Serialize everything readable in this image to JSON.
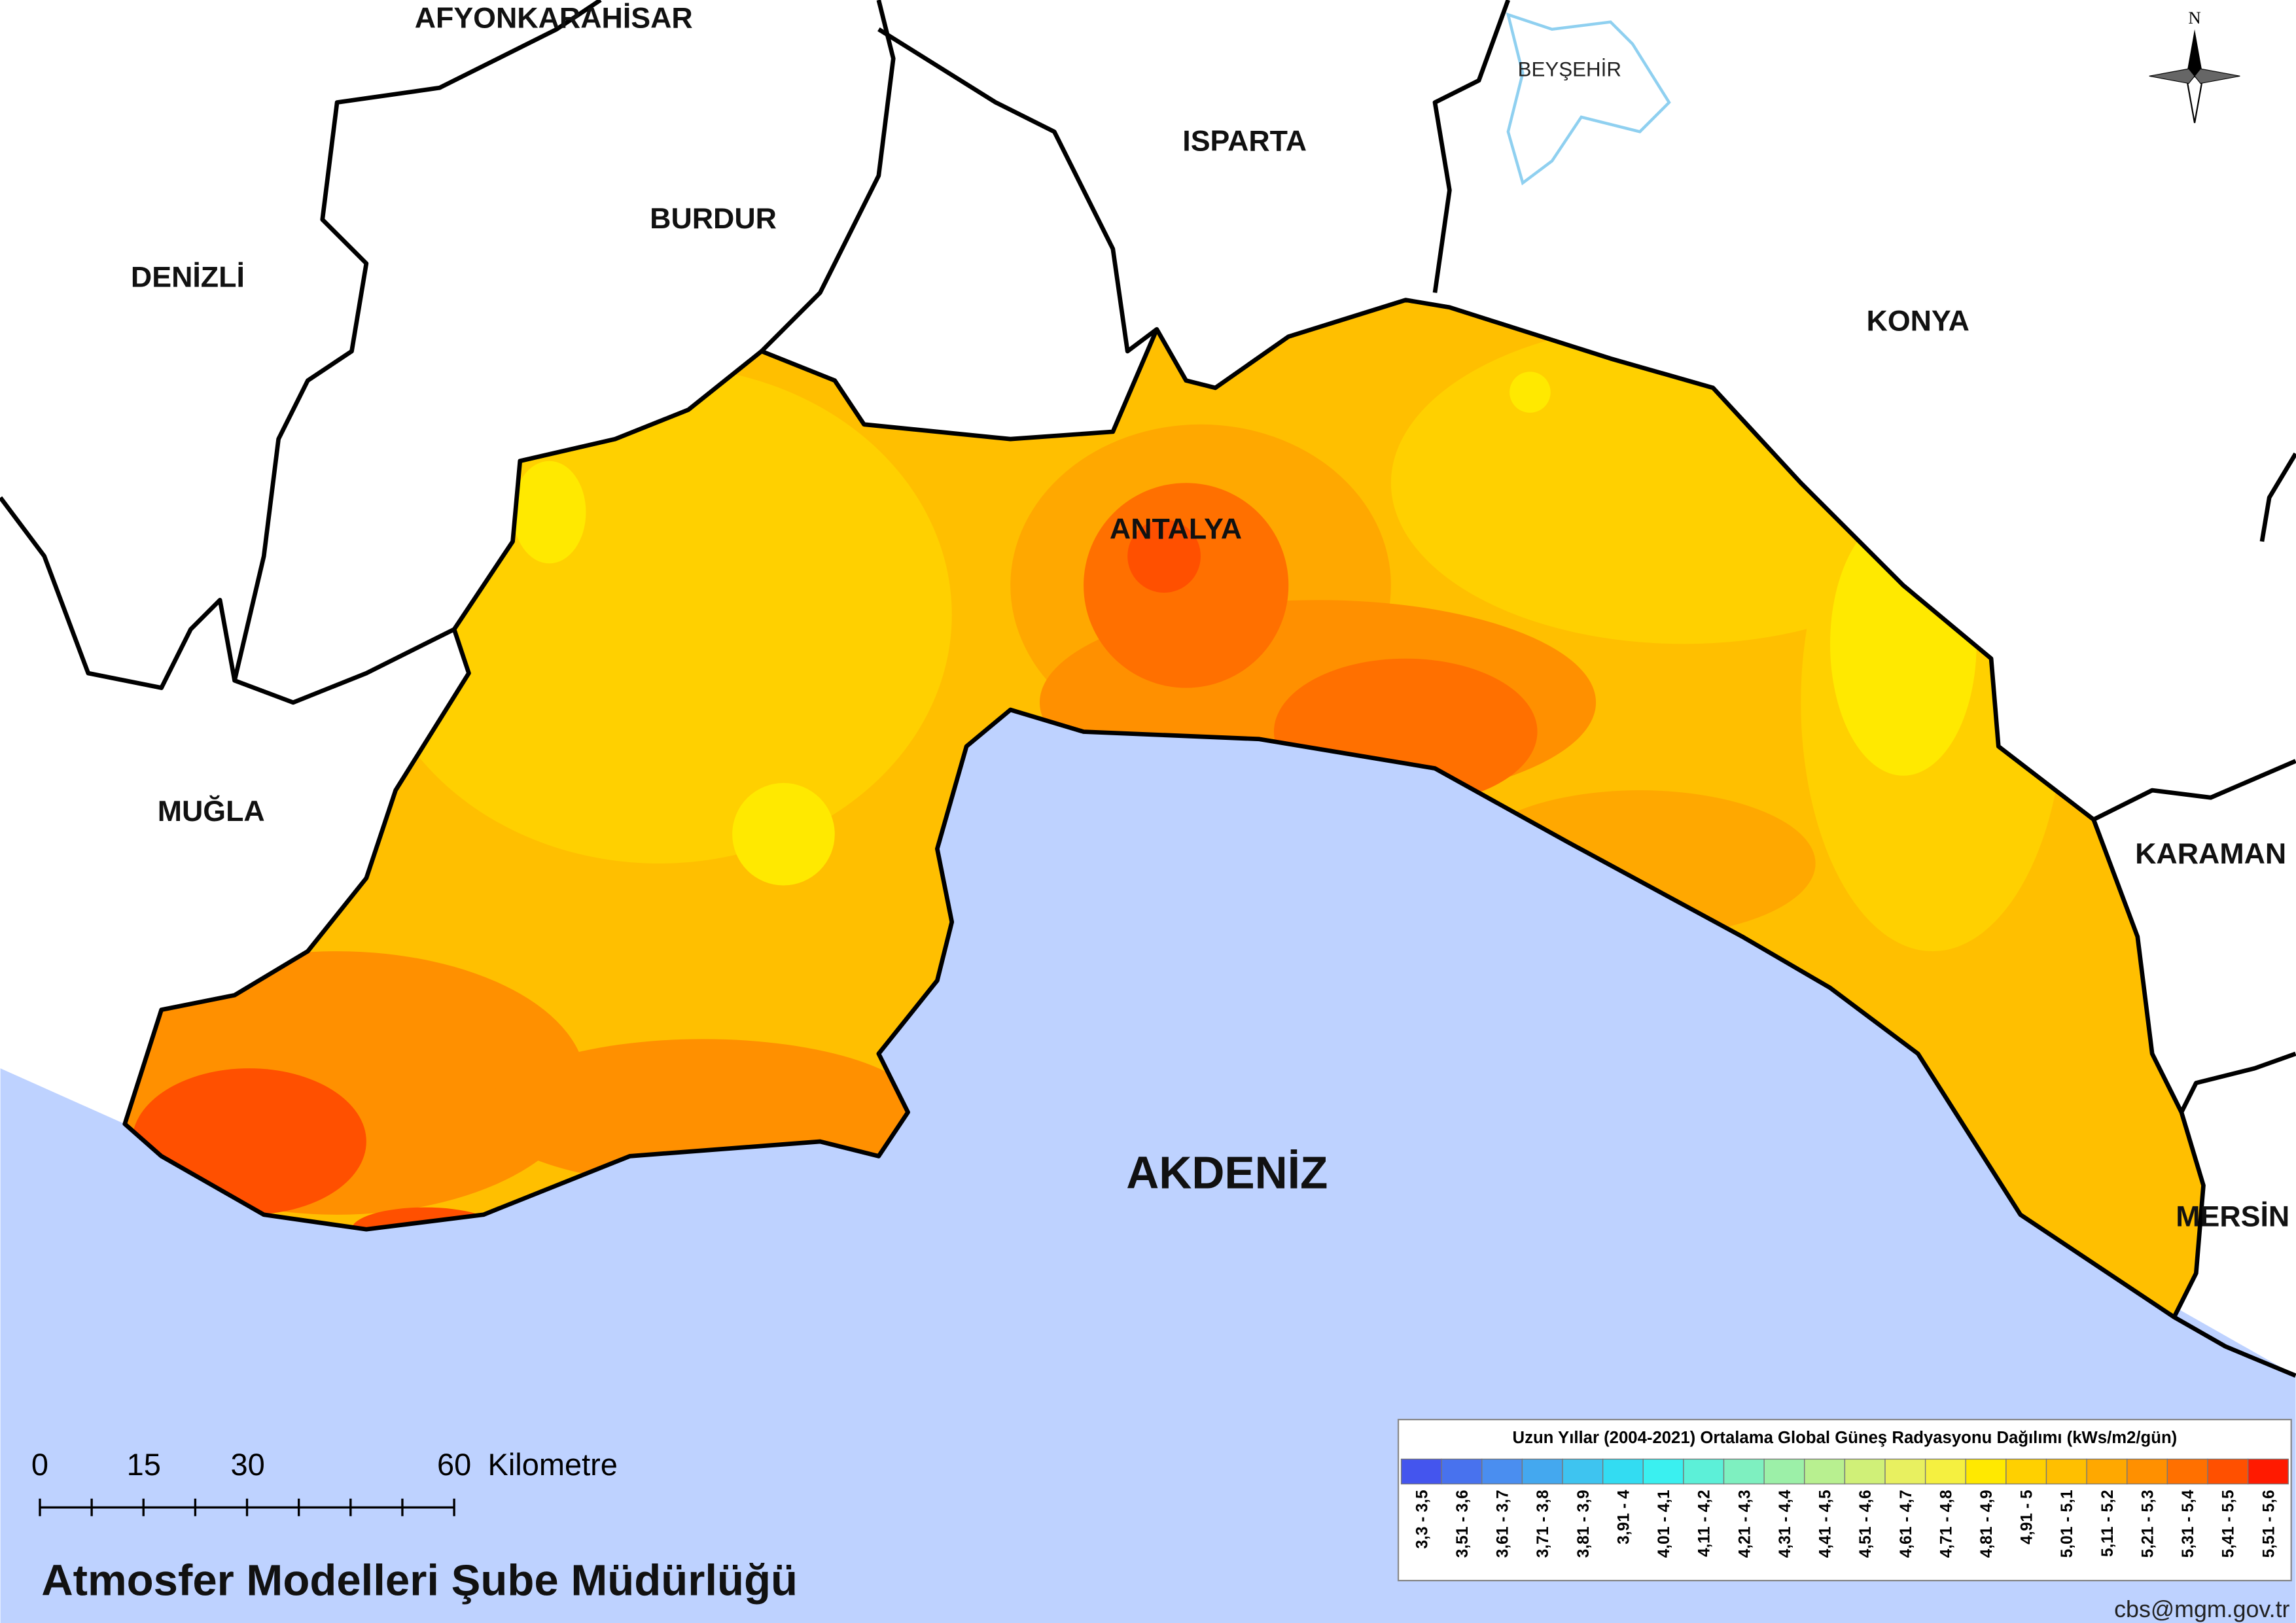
{
  "map": {
    "provinces": [
      "AFYONKARAHİSAR",
      "BURDUR",
      "ISPARTA",
      "DENİZLİ",
      "KONYA",
      "ANTALYA",
      "MUĞLA",
      "KARAMAN",
      "MERSİN"
    ],
    "lake": "BEYŞEHİR",
    "sea": "AKDENİZ",
    "north": "N"
  },
  "scale_bar": {
    "labels": [
      "0",
      "15",
      "30",
      "60"
    ],
    "unit": "Kilometre"
  },
  "legend": {
    "title": "Uzun Yıllar (2004-2021) Ortalama Global Güneş Radyasyonu Dağılımı (kWs/m2/gün)",
    "classes": [
      {
        "label": "3,3 - 3,5",
        "color": "#4455ee"
      },
      {
        "label": "3,51 - 3,6",
        "color": "#4872ee"
      },
      {
        "label": "3,61 - 3,7",
        "color": "#4a8ef0"
      },
      {
        "label": "3,71 - 3,8",
        "color": "#44a8ef"
      },
      {
        "label": "3,81 - 3,9",
        "color": "#3ec4f0"
      },
      {
        "label": "3,91 - 4",
        "color": "#33dcf2"
      },
      {
        "label": "4,01 - 4,1",
        "color": "#3af0f0"
      },
      {
        "label": "4,11 - 4,2",
        "color": "#5cf0d8"
      },
      {
        "label": "4,21 - 4,3",
        "color": "#7ef0c0"
      },
      {
        "label": "4,31 - 4,4",
        "color": "#9cf0a8"
      },
      {
        "label": "4,41 - 4,5",
        "color": "#b8f090"
      },
      {
        "label": "4,51 - 4,6",
        "color": "#d0f078"
      },
      {
        "label": "4,61 - 4,7",
        "color": "#e8f060"
      },
      {
        "label": "4,71 - 4,8",
        "color": "#f5f040"
      },
      {
        "label": "4,81 - 4,9",
        "color": "#ffe900"
      },
      {
        "label": "4,91 - 5",
        "color": "#ffd000"
      },
      {
        "label": "5,01 - 5,1",
        "color": "#ffbf00"
      },
      {
        "label": "5,11 - 5,2",
        "color": "#ffa800"
      },
      {
        "label": "5,21 - 5,3",
        "color": "#ff9000"
      },
      {
        "label": "5,31 - 5,4",
        "color": "#ff7000"
      },
      {
        "label": "5,41 - 5,5",
        "color": "#ff5000"
      },
      {
        "label": "5,51 - 5,6",
        "color": "#ff1a00"
      }
    ]
  },
  "footer": {
    "credit": "Atmosfer Modelleri Şube Müdürlüğü",
    "email": "cbs@mgm.gov.tr"
  }
}
